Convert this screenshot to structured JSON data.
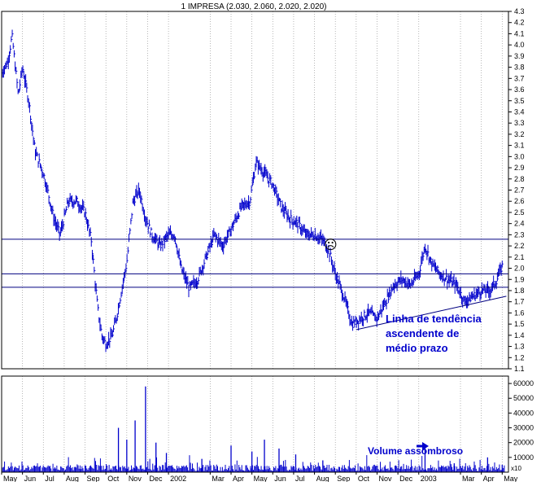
{
  "chart_data": {
    "type": "bar",
    "title": "1 IMPRESA (2.030, 2.060, 2.020, 2.020)",
    "price_axis": {
      "ylim": [
        1.1,
        4.3
      ],
      "ticks": [
        "4.3",
        "4.2",
        "4.1",
        "4.0",
        "3.9",
        "3.8",
        "3.7",
        "3.6",
        "3.5",
        "3.4",
        "3.3",
        "3.2",
        "3.1",
        "3.0",
        "2.9",
        "2.8",
        "2.7",
        "2.6",
        "2.5",
        "2.4",
        "2.3",
        "2.2",
        "2.1",
        "2.0",
        "1.9",
        "1.8",
        "1.7",
        "1.6",
        "1.5",
        "1.4",
        "1.3",
        "1.2",
        "1.1"
      ]
    },
    "volume_axis": {
      "ylim": [
        0,
        65000
      ],
      "ticks": [
        "60000",
        "50000",
        "40000",
        "30000",
        "20000",
        "10000"
      ],
      "unit_label": "x10"
    },
    "x_axis": {
      "labels": [
        "May",
        "Jun",
        "Jul",
        "Aug",
        "Sep",
        "Oct",
        "Nov",
        "Dec",
        "2002",
        "Mar",
        "Apr",
        "May",
        "Jun",
        "Jul",
        "Aug",
        "Sep",
        "Oct",
        "Nov",
        "Dec",
        "2003",
        "Mar",
        "Apr",
        "May"
      ],
      "positions": [
        0,
        1,
        2,
        3,
        4,
        5,
        6,
        7,
        8,
        10,
        11,
        12,
        13,
        14,
        15,
        16,
        17,
        18,
        19,
        20,
        22,
        23,
        24
      ]
    },
    "horizontal_lines": [
      2.26,
      1.95,
      1.83
    ],
    "price_path": [
      [
        0,
        3.75
      ],
      [
        0.3,
        3.85
      ],
      [
        0.5,
        4.08
      ],
      [
        0.8,
        3.55
      ],
      [
        1.0,
        3.8
      ],
      [
        1.3,
        3.5
      ],
      [
        1.6,
        3.05
      ],
      [
        2.0,
        2.85
      ],
      [
        2.2,
        2.7
      ],
      [
        2.5,
        2.45
      ],
      [
        2.8,
        2.3
      ],
      [
        3.2,
        2.6
      ],
      [
        3.6,
        2.6
      ],
      [
        4.0,
        2.5
      ],
      [
        4.3,
        2.25
      ],
      [
        4.6,
        1.65
      ],
      [
        4.8,
        1.4
      ],
      [
        5.0,
        1.32
      ],
      [
        5.3,
        1.4
      ],
      [
        5.5,
        1.55
      ],
      [
        5.8,
        1.85
      ],
      [
        6.0,
        2.05
      ],
      [
        6.3,
        2.6
      ],
      [
        6.6,
        2.7
      ],
      [
        6.9,
        2.45
      ],
      [
        7.2,
        2.3
      ],
      [
        7.6,
        2.2
      ],
      [
        8.0,
        2.3
      ],
      [
        8.3,
        2.3
      ],
      [
        8.6,
        2.0
      ],
      [
        9.0,
        1.82
      ],
      [
        9.4,
        1.9
      ],
      [
        9.8,
        2.1
      ],
      [
        10.2,
        2.3
      ],
      [
        10.6,
        2.2
      ],
      [
        11.0,
        2.35
      ],
      [
        11.5,
        2.55
      ],
      [
        11.9,
        2.6
      ],
      [
        12.2,
        2.95
      ],
      [
        12.6,
        2.85
      ],
      [
        13.0,
        2.75
      ],
      [
        13.4,
        2.55
      ],
      [
        13.8,
        2.45
      ],
      [
        14.2,
        2.4
      ],
      [
        14.6,
        2.3
      ],
      [
        15.0,
        2.3
      ],
      [
        15.4,
        2.25
      ],
      [
        15.7,
        2.15
      ],
      [
        16.0,
        1.95
      ],
      [
        16.4,
        1.75
      ],
      [
        16.8,
        1.5
      ],
      [
        17.2,
        1.55
      ],
      [
        17.6,
        1.6
      ],
      [
        18.0,
        1.55
      ],
      [
        18.4,
        1.7
      ],
      [
        18.8,
        1.85
      ],
      [
        19.2,
        1.9
      ],
      [
        19.6,
        1.85
      ],
      [
        20.0,
        1.95
      ],
      [
        20.3,
        2.2
      ],
      [
        20.6,
        2.05
      ],
      [
        21.0,
        1.95
      ],
      [
        21.4,
        1.9
      ],
      [
        21.8,
        1.85
      ],
      [
        22.2,
        1.7
      ],
      [
        22.6,
        1.75
      ],
      [
        23.0,
        1.8
      ],
      [
        23.4,
        1.8
      ],
      [
        23.7,
        1.88
      ],
      [
        24.0,
        2.02
      ]
    ],
    "trend_line": {
      "from": [
        17.0,
        1.45
      ],
      "to": [
        24.2,
        1.75
      ]
    },
    "annotations": {
      "trend_text": [
        "Linha de tendência",
        "ascendente de",
        "médio prazo"
      ],
      "volume_text": "Volume assombroso",
      "smiley": "☹"
    },
    "volume_spikes": [
      [
        5.6,
        30000
      ],
      [
        6.0,
        22000
      ],
      [
        6.4,
        35000
      ],
      [
        6.9,
        58000
      ],
      [
        7.4,
        20000
      ],
      [
        7.9,
        13000
      ],
      [
        9.6,
        9000
      ],
      [
        11.0,
        18000
      ],
      [
        12.0,
        14000
      ],
      [
        12.6,
        22000
      ],
      [
        13.3,
        16000
      ],
      [
        14.1,
        12000
      ],
      [
        15.4,
        8000
      ],
      [
        20.3,
        18000
      ],
      [
        21.7,
        6000
      ],
      [
        23.3,
        10000
      ],
      [
        24.0,
        5000
      ]
    ]
  }
}
